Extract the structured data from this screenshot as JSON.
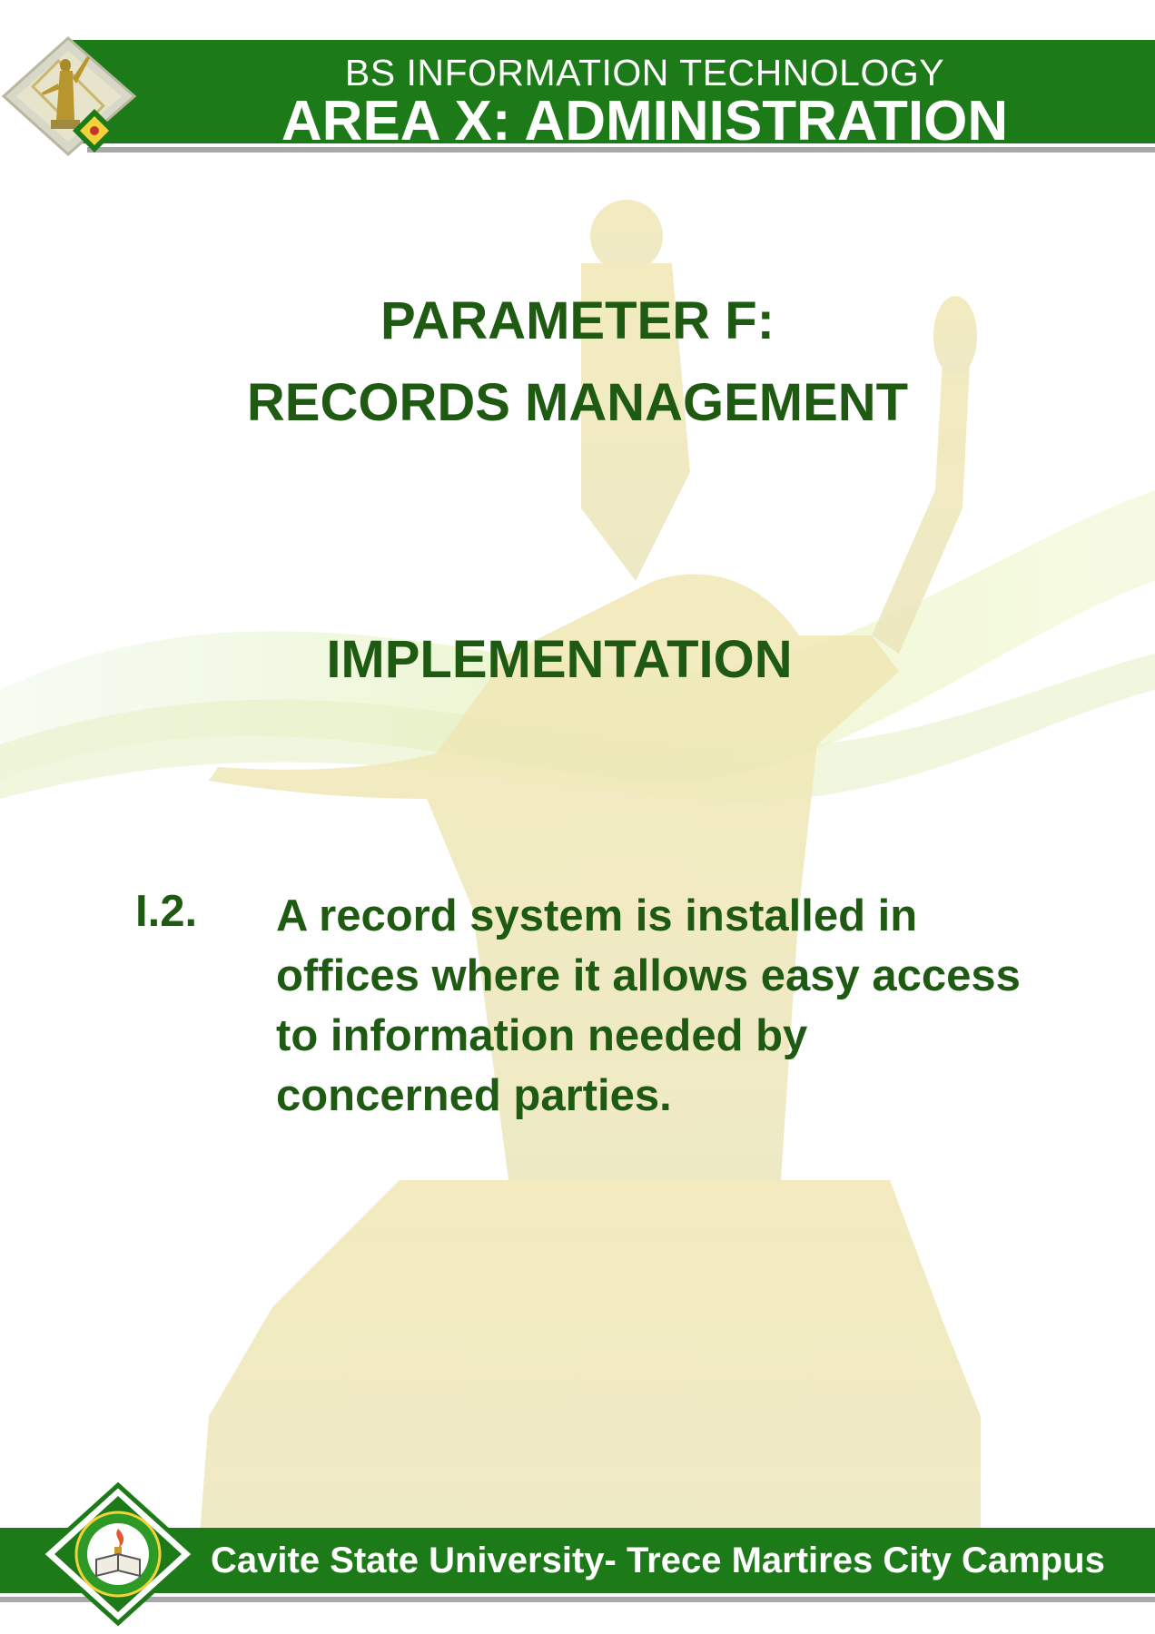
{
  "header": {
    "program": "BS INFORMATION TECHNOLOGY",
    "area": "AREA X: ADMINISTRATION"
  },
  "parameter": {
    "line1": "PARAMETER F:",
    "line2": "RECORDS MANAGEMENT"
  },
  "section": "IMPLEMENTATION",
  "item": {
    "number": "I.2.",
    "text": "A record system is installed in offices where it allows easy access to information needed by concerned parties."
  },
  "footer": {
    "campus": "Cavite State University- Trece Martires City Campus"
  },
  "colors": {
    "band_green": "#1d7a18",
    "text_green": "#1f5a12",
    "underline_gray": "#a8a8a8"
  },
  "icons": {
    "top_logo": "monument-emblem-icon",
    "bottom_logo": "university-seal-icon"
  }
}
